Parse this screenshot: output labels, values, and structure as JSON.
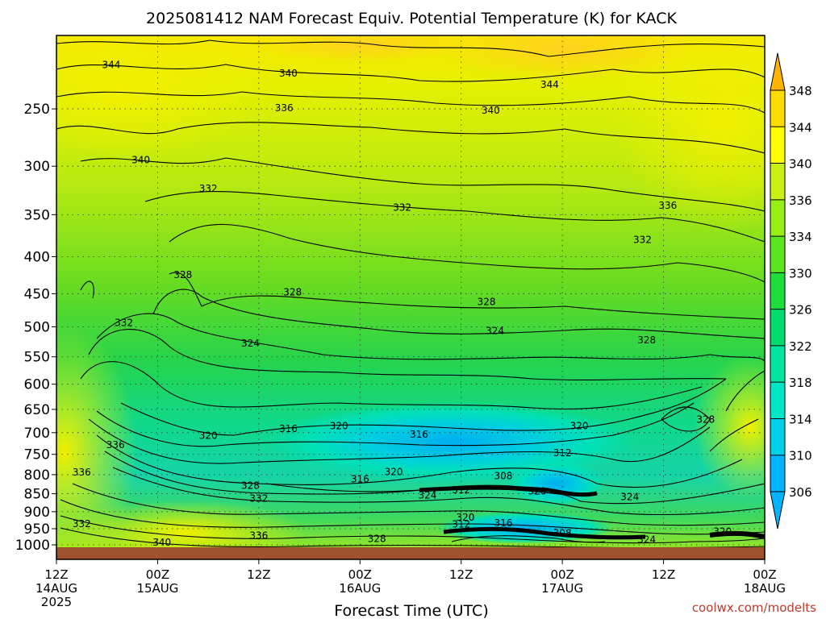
{
  "chart_data": {
    "type": "heatmap",
    "title": "2025081412 NAM Forecast Equiv. Potential Temperature (K) for KACK",
    "xlabel": "Forecast Time (UTC)",
    "ylabel": "",
    "credit": "coolwx.com/modelts",
    "y_axis": {
      "scale": "pressure (inverted)",
      "ylim": [
        1000,
        200
      ],
      "ticks": [
        250,
        300,
        350,
        400,
        450,
        500,
        550,
        600,
        650,
        700,
        750,
        800,
        850,
        900,
        950,
        1000
      ]
    },
    "x_axis": {
      "hours_range": [
        0,
        84
      ],
      "ticks": [
        {
          "hour": 0,
          "line1": "12Z",
          "line2": "14AUG",
          "line3": "2025"
        },
        {
          "hour": 12,
          "line1": "00Z",
          "line2": "15AUG",
          "line3": ""
        },
        {
          "hour": 24,
          "line1": "12Z",
          "line2": "",
          "line3": ""
        },
        {
          "hour": 36,
          "line1": "00Z",
          "line2": "16AUG",
          "line3": ""
        },
        {
          "hour": 48,
          "line1": "12Z",
          "line2": "",
          "line3": ""
        },
        {
          "hour": 60,
          "line1": "00Z",
          "line2": "17AUG",
          "line3": ""
        },
        {
          "hour": 72,
          "line1": "12Z",
          "line2": "",
          "line3": ""
        },
        {
          "hour": 84,
          "line1": "00Z",
          "line2": "18AUG",
          "line3": ""
        }
      ]
    },
    "grid": true,
    "colorbar": {
      "placement": "right",
      "levels": [
        306,
        310,
        314,
        318,
        322,
        326,
        330,
        334,
        336,
        340,
        344,
        348
      ],
      "colors": [
        "#00b4ff",
        "#00d2e6",
        "#00e6c8",
        "#00e6a0",
        "#00dc6e",
        "#1ede3c",
        "#5ae61e",
        "#96ee14",
        "#c8f014",
        "#ffff00",
        "#ffdc00",
        "#ffb400"
      ]
    },
    "ground_color": "#a0522d",
    "contour_labels": [
      {
        "v": 344,
        "h": 6.5,
        "p": 218
      },
      {
        "v": 340,
        "h": 27.5,
        "p": 224
      },
      {
        "v": 344,
        "h": 58.5,
        "p": 232
      },
      {
        "v": 336,
        "h": 27.0,
        "p": 250
      },
      {
        "v": 340,
        "h": 51.5,
        "p": 252
      },
      {
        "v": 340,
        "h": 10.0,
        "p": 295
      },
      {
        "v": 332,
        "h": 18.0,
        "p": 323
      },
      {
        "v": 332,
        "h": 41.0,
        "p": 343
      },
      {
        "v": 336,
        "h": 72.5,
        "p": 341
      },
      {
        "v": 332,
        "h": 69.5,
        "p": 380
      },
      {
        "v": 328,
        "h": 15.0,
        "p": 425
      },
      {
        "v": 328,
        "h": 28.0,
        "p": 449
      },
      {
        "v": 328,
        "h": 51.0,
        "p": 463
      },
      {
        "v": 332,
        "h": 8.0,
        "p": 495
      },
      {
        "v": 324,
        "h": 23.0,
        "p": 528
      },
      {
        "v": 324,
        "h": 52.0,
        "p": 508
      },
      {
        "v": 328,
        "h": 70.0,
        "p": 523
      },
      {
        "v": 328,
        "h": 77.0,
        "p": 673
      },
      {
        "v": 316,
        "h": 27.5,
        "p": 693
      },
      {
        "v": 320,
        "h": 33.5,
        "p": 687
      },
      {
        "v": 320,
        "h": 18.0,
        "p": 708
      },
      {
        "v": 316,
        "h": 43.0,
        "p": 706
      },
      {
        "v": 320,
        "h": 62.0,
        "p": 687
      },
      {
        "v": 336,
        "h": 7.0,
        "p": 730
      },
      {
        "v": 312,
        "h": 60.0,
        "p": 749
      },
      {
        "v": 336,
        "h": 3.0,
        "p": 796
      },
      {
        "v": 320,
        "h": 40.0,
        "p": 795
      },
      {
        "v": 308,
        "h": 53.0,
        "p": 805
      },
      {
        "v": 316,
        "h": 36.0,
        "p": 814
      },
      {
        "v": 328,
        "h": 23.0,
        "p": 830
      },
      {
        "v": 312,
        "h": 48.0,
        "p": 842
      },
      {
        "v": 320,
        "h": 57.0,
        "p": 845
      },
      {
        "v": 324,
        "h": 44.0,
        "p": 856
      },
      {
        "v": 332,
        "h": 24.0,
        "p": 865
      },
      {
        "v": 324,
        "h": 68.0,
        "p": 861
      },
      {
        "v": 332,
        "h": 3.0,
        "p": 938
      },
      {
        "v": 320,
        "h": 48.5,
        "p": 919
      },
      {
        "v": 312,
        "h": 48.0,
        "p": 939
      },
      {
        "v": 316,
        "h": 53.0,
        "p": 936
      },
      {
        "v": 308,
        "h": 60.0,
        "p": 966
      },
      {
        "v": 336,
        "h": 24.0,
        "p": 974
      },
      {
        "v": 328,
        "h": 38.0,
        "p": 983
      },
      {
        "v": 324,
        "h": 70.0,
        "p": 986
      },
      {
        "v": 320,
        "h": 79.0,
        "p": 961
      },
      {
        "v": 340,
        "h": 12.5,
        "p": 995
      }
    ]
  }
}
